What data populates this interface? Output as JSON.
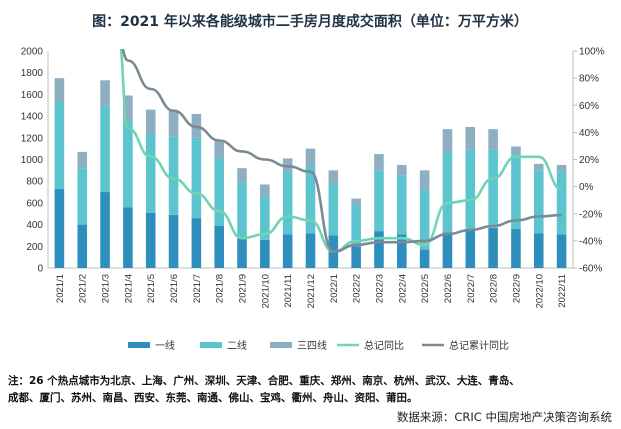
{
  "chart_data": {
    "type": "bar",
    "title": "图：2021 年以来各能级城市二手房月度成交面积（单位：万平方米）",
    "categories": [
      "2021/1",
      "2021/2",
      "2021/3",
      "2021/4",
      "2021/5",
      "2021/6",
      "2021/7",
      "2021/8",
      "2021/9",
      "2021/10",
      "2021/11",
      "2021/12",
      "2022/1",
      "2022/2",
      "2022/3",
      "2022/4",
      "2022/5",
      "2022/6",
      "2022/7",
      "2022/8",
      "2022/9",
      "2022/10",
      "2022/11"
    ],
    "stacked": true,
    "ylim": [
      0,
      2000
    ],
    "yticks": [
      "0",
      "200",
      "400",
      "600",
      "800",
      "1000",
      "1200",
      "1400",
      "1600",
      "1800",
      "2000"
    ],
    "y2lim": [
      -60,
      100
    ],
    "y2ticks": [
      "-60%",
      "-40%",
      "-20%",
      "0%",
      "20%",
      "40%",
      "60%",
      "80%",
      "100%"
    ],
    "series": [
      {
        "name": "一线",
        "kind": "bar",
        "axis": "left",
        "color": "#2e8fbd",
        "values": [
          730,
          400,
          700,
          560,
          510,
          490,
          460,
          390,
          290,
          260,
          310,
          320,
          300,
          200,
          340,
          310,
          170,
          330,
          350,
          370,
          360,
          320,
          310
        ]
      },
      {
        "name": "二线",
        "kind": "bar",
        "axis": "left",
        "color": "#5cc4cf",
        "values": [
          800,
          520,
          800,
          790,
          730,
          720,
          740,
          620,
          500,
          400,
          580,
          620,
          470,
          380,
          560,
          540,
          550,
          740,
          740,
          720,
          690,
          580,
          580
        ]
      },
      {
        "name": "三四线",
        "kind": "bar",
        "axis": "left",
        "color": "#8eaec1",
        "values": [
          220,
          150,
          230,
          240,
          220,
          240,
          220,
          160,
          130,
          110,
          120,
          160,
          130,
          60,
          150,
          100,
          180,
          210,
          210,
          190,
          70,
          60,
          60
        ]
      },
      {
        "name": "总记同比",
        "kind": "line",
        "axis": "right",
        "color": "#6fd3b4",
        "values": [
          null,
          null,
          null,
          43,
          22,
          6,
          -5,
          -18,
          -38,
          -35,
          -22,
          -25,
          -48,
          -40,
          -38,
          -38,
          -43,
          -12,
          -10,
          6,
          22,
          22,
          -2
        ]
      },
      {
        "name": "总记累计同比",
        "kind": "line",
        "axis": "right",
        "color": "#7b8a93",
        "values": [
          null,
          null,
          null,
          93,
          72,
          56,
          44,
          34,
          26,
          20,
          15,
          11,
          -48,
          -43,
          -41,
          -41,
          -40,
          -35,
          -32,
          -29,
          -25,
          -22,
          -21
        ]
      }
    ],
    "legend_position": "bottom",
    "grid": false
  },
  "note": "注：26 个热点城市为北京、上海、广州、深圳、天津、合肥、重庆、郑州、南京、杭州、武汉、大连、青岛、成都、厦门、苏州、南昌、西安、东莞、南通、佛山、宝鸡、衢州、舟山、资阳、莆田。",
  "note_lines": [
    "注：26 个热点城市为北京、上海、广州、深圳、天津、合肥、重庆、郑州、南京、杭州、武汉、大连、青岛、",
    "成都、厦门、苏州、南昌、西安、东莞、南通、佛山、宝鸡、衢州、舟山、资阳、莆田。"
  ],
  "source": "数据来源：CRIC 中国房地产决策咨询系统"
}
